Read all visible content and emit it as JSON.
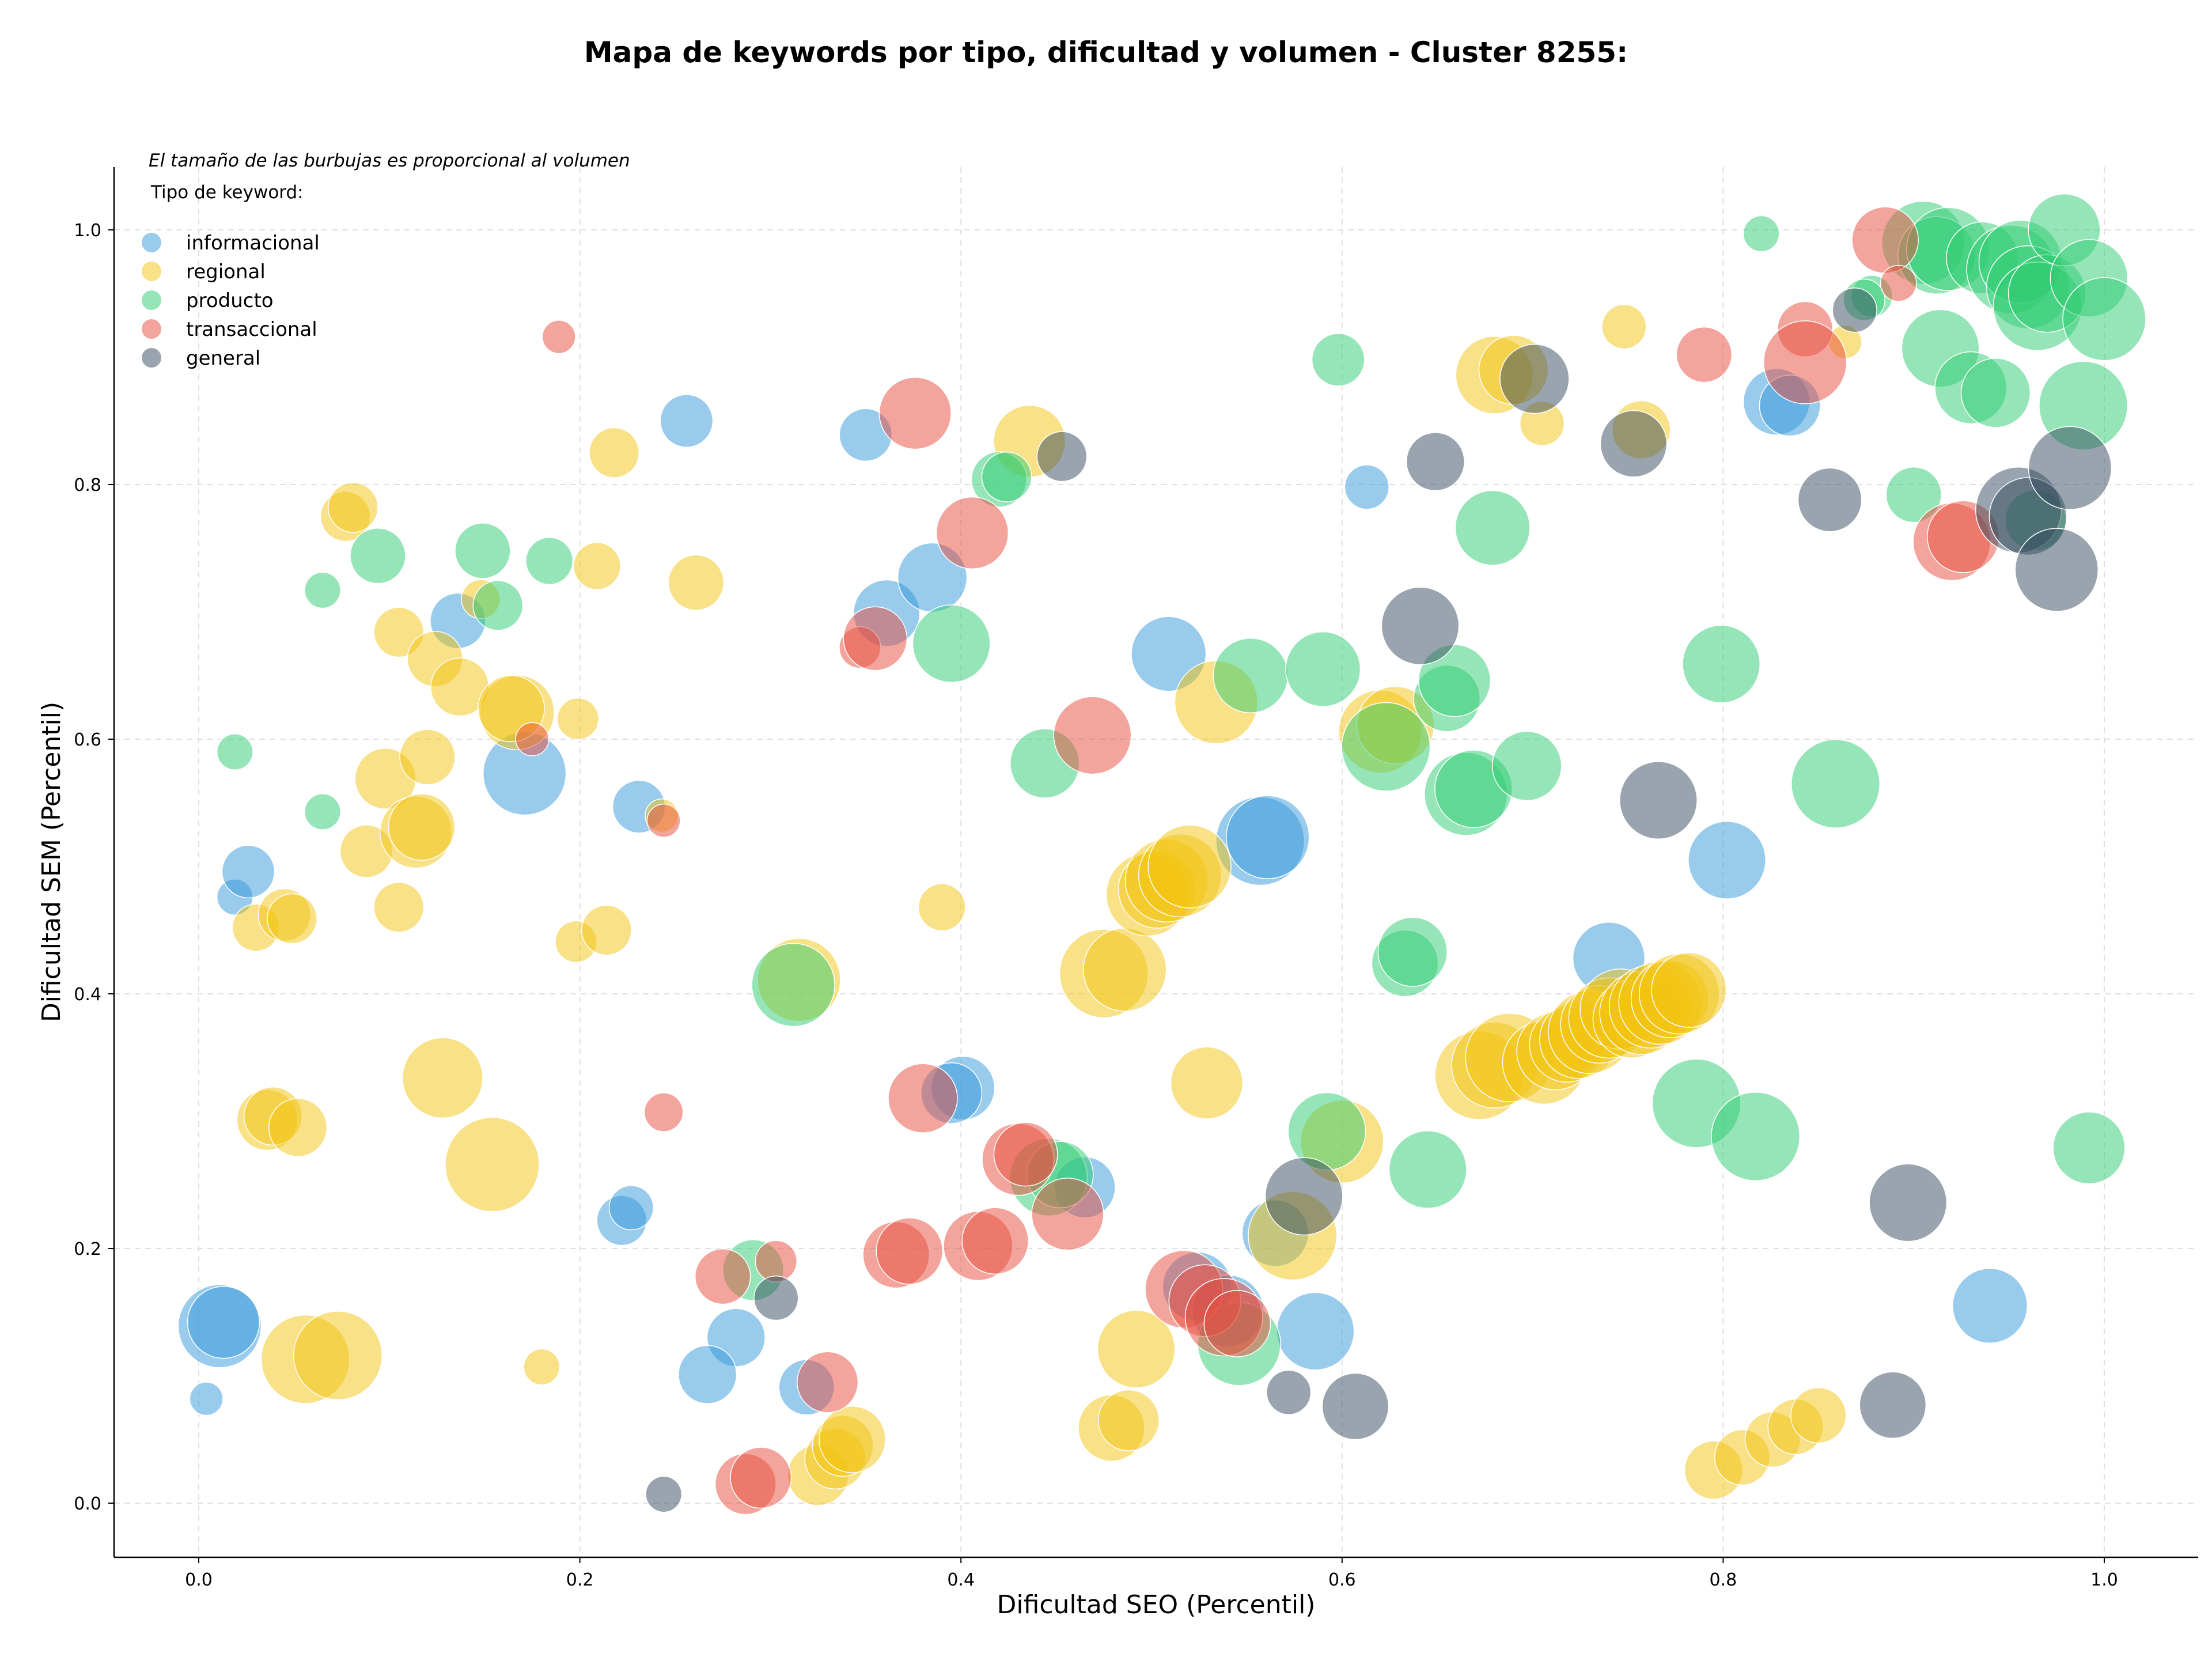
{
  "chart_data": {
    "type": "scatter",
    "title": "Mapa de keywords por tipo, dificultad y volumen - Cluster 8255:",
    "xlabel": "Dificultad SEO (Percentil)",
    "ylabel": "Dificultad SEM (Percentil)",
    "xlim": [
      -0.045,
      1.05
    ],
    "ylim": [
      -0.045,
      1.05
    ],
    "xticks": [
      0.0,
      0.2,
      0.4,
      0.6,
      0.8,
      1.0
    ],
    "yticks": [
      0.0,
      0.2,
      0.4,
      0.6,
      0.8,
      1.0
    ],
    "xtick_labels": [
      "0.0",
      "0.2",
      "0.4",
      "0.6",
      "0.8",
      "1.0"
    ],
    "ytick_labels": [
      "0.0",
      "0.2",
      "0.4",
      "0.6",
      "0.8",
      "1.0"
    ],
    "grid": true,
    "annotation": "El tamaño de las burbujas es proporcional al volumen",
    "legend_title": "Tipo de keyword:",
    "legend_position": "top-left",
    "series": [
      {
        "name": "informacional",
        "color": "#3498db",
        "points": [
          [
            0.004,
            0.082,
            12
          ],
          [
            0.019,
            0.476,
            13
          ],
          [
            0.026,
            0.496,
            19
          ],
          [
            0.011,
            0.139,
            30
          ],
          [
            0.013,
            0.142,
            26
          ],
          [
            0.136,
            0.693,
            20
          ],
          [
            0.171,
            0.573,
            30
          ],
          [
            0.231,
            0.547,
            19
          ],
          [
            0.256,
            0.85,
            19
          ],
          [
            0.222,
            0.222,
            18
          ],
          [
            0.227,
            0.232,
            16
          ],
          [
            0.282,
            0.13,
            21
          ],
          [
            0.267,
            0.101,
            21
          ],
          [
            0.319,
            0.091,
            20
          ],
          [
            0.35,
            0.839,
            19
          ],
          [
            0.361,
            0.699,
            24
          ],
          [
            0.385,
            0.727,
            25
          ],
          [
            0.401,
            0.326,
            23
          ],
          [
            0.395,
            0.322,
            22
          ],
          [
            0.509,
            0.667,
            27
          ],
          [
            0.465,
            0.248,
            22
          ],
          [
            0.524,
            0.17,
            25
          ],
          [
            0.54,
            0.151,
            26
          ],
          [
            0.557,
            0.52,
            32
          ],
          [
            0.561,
            0.523,
            30
          ],
          [
            0.565,
            0.212,
            24
          ],
          [
            0.586,
            0.135,
            28
          ],
          [
            0.613,
            0.798,
            16
          ],
          [
            0.74,
            0.428,
            26
          ],
          [
            0.802,
            0.505,
            28
          ],
          [
            0.828,
            0.865,
            24
          ],
          [
            0.835,
            0.862,
            22
          ],
          [
            0.94,
            0.155,
            27
          ]
        ]
      },
      {
        "name": "regional",
        "color": "#f1c40f",
        "points": [
          [
            0.03,
            0.452,
            17
          ],
          [
            0.045,
            0.462,
            19
          ],
          [
            0.049,
            0.459,
            18
          ],
          [
            0.036,
            0.301,
            22
          ],
          [
            0.039,
            0.304,
            21
          ],
          [
            0.052,
            0.295,
            21
          ],
          [
            0.056,
            0.113,
            32
          ],
          [
            0.073,
            0.116,
            32
          ],
          [
            0.077,
            0.775,
            18
          ],
          [
            0.081,
            0.782,
            18
          ],
          [
            0.088,
            0.512,
            19
          ],
          [
            0.105,
            0.684,
            18
          ],
          [
            0.105,
            0.468,
            18
          ],
          [
            0.098,
            0.569,
            22
          ],
          [
            0.114,
            0.527,
            26
          ],
          [
            0.117,
            0.531,
            24
          ],
          [
            0.124,
            0.663,
            20
          ],
          [
            0.12,
            0.586,
            20
          ],
          [
            0.137,
            0.641,
            21
          ],
          [
            0.128,
            0.334,
            29
          ],
          [
            0.154,
            0.266,
            34
          ],
          [
            0.148,
            0.71,
            14
          ],
          [
            0.167,
            0.621,
            27
          ],
          [
            0.164,
            0.624,
            24
          ],
          [
            0.18,
            0.107,
            13
          ],
          [
            0.199,
            0.616,
            15
          ],
          [
            0.198,
            0.441,
            15
          ],
          [
            0.209,
            0.736,
            17
          ],
          [
            0.214,
            0.45,
            18
          ],
          [
            0.218,
            0.825,
            18
          ],
          [
            0.261,
            0.723,
            20
          ],
          [
            0.243,
            0.54,
            12
          ],
          [
            0.325,
            0.022,
            22
          ],
          [
            0.334,
            0.035,
            22
          ],
          [
            0.338,
            0.045,
            22
          ],
          [
            0.343,
            0.05,
            24
          ],
          [
            0.315,
            0.411,
            30
          ],
          [
            0.39,
            0.468,
            17
          ],
          [
            0.436,
            0.834,
            26
          ],
          [
            0.475,
            0.416,
            32
          ],
          [
            0.486,
            0.419,
            30
          ],
          [
            0.479,
            0.059,
            24
          ],
          [
            0.488,
            0.065,
            22
          ],
          [
            0.492,
            0.121,
            28
          ],
          [
            0.498,
            0.478,
            30
          ],
          [
            0.503,
            0.482,
            28
          ],
          [
            0.508,
            0.489,
            30
          ],
          [
            0.515,
            0.493,
            30
          ],
          [
            0.52,
            0.5,
            30
          ],
          [
            0.529,
            0.33,
            26
          ],
          [
            0.534,
            0.629,
            30
          ],
          [
            0.574,
            0.21,
            32
          ],
          [
            0.6,
            0.284,
            30
          ],
          [
            0.62,
            0.606,
            30
          ],
          [
            0.628,
            0.611,
            28
          ],
          [
            0.672,
            0.336,
            32
          ],
          [
            0.68,
            0.344,
            31
          ],
          [
            0.688,
            0.35,
            32
          ],
          [
            0.68,
            0.886,
            28
          ],
          [
            0.69,
            0.89,
            25
          ],
          [
            0.706,
            0.346,
            30
          ],
          [
            0.712,
            0.355,
            28
          ],
          [
            0.718,
            0.36,
            27
          ],
          [
            0.724,
            0.364,
            28
          ],
          [
            0.73,
            0.37,
            30
          ],
          [
            0.735,
            0.376,
            28
          ],
          [
            0.74,
            0.381,
            29
          ],
          [
            0.746,
            0.388,
            29
          ],
          [
            0.752,
            0.38,
            28
          ],
          [
            0.757,
            0.385,
            30
          ],
          [
            0.762,
            0.39,
            30
          ],
          [
            0.767,
            0.393,
            30
          ],
          [
            0.772,
            0.396,
            28
          ],
          [
            0.777,
            0.4,
            29
          ],
          [
            0.782,
            0.403,
            27
          ],
          [
            0.748,
            0.924,
            16
          ],
          [
            0.757,
            0.843,
            21
          ],
          [
            0.705,
            0.848,
            16
          ],
          [
            0.864,
            0.912,
            12
          ],
          [
            0.795,
            0.026,
            21
          ],
          [
            0.81,
            0.036,
            20
          ],
          [
            0.826,
            0.05,
            20
          ],
          [
            0.838,
            0.06,
            20
          ],
          [
            0.85,
            0.069,
            20
          ]
        ]
      },
      {
        "name": "producto",
        "color": "#2ecc71",
        "points": [
          [
            0.019,
            0.59,
            13
          ],
          [
            0.065,
            0.717,
            13
          ],
          [
            0.065,
            0.543,
            13
          ],
          [
            0.094,
            0.744,
            20
          ],
          [
            0.149,
            0.748,
            20
          ],
          [
            0.157,
            0.705,
            18
          ],
          [
            0.184,
            0.74,
            17
          ],
          [
            0.291,
            0.183,
            22
          ],
          [
            0.312,
            0.407,
            30
          ],
          [
            0.395,
            0.675,
            28
          ],
          [
            0.42,
            0.804,
            20
          ],
          [
            0.424,
            0.806,
            18
          ],
          [
            0.444,
            0.581,
            25
          ],
          [
            0.446,
            0.256,
            28
          ],
          [
            0.452,
            0.258,
            24
          ],
          [
            0.546,
            0.125,
            30
          ],
          [
            0.552,
            0.65,
            27
          ],
          [
            0.59,
            0.655,
            27
          ],
          [
            0.598,
            0.898,
            19
          ],
          [
            0.592,
            0.292,
            28
          ],
          [
            0.623,
            0.594,
            32
          ],
          [
            0.633,
            0.424,
            24
          ],
          [
            0.637,
            0.433,
            25
          ],
          [
            0.645,
            0.262,
            28
          ],
          [
            0.655,
            0.632,
            24
          ],
          [
            0.659,
            0.646,
            26
          ],
          [
            0.665,
            0.557,
            30
          ],
          [
            0.669,
            0.561,
            28
          ],
          [
            0.679,
            0.766,
            27
          ],
          [
            0.697,
            0.579,
            25
          ],
          [
            0.786,
            0.314,
            32
          ],
          [
            0.799,
            0.659,
            28
          ],
          [
            0.817,
            0.288,
            32
          ],
          [
            0.82,
            0.997,
            13
          ],
          [
            0.859,
            0.565,
            32
          ],
          [
            0.878,
            0.948,
            15
          ],
          [
            0.874,
            0.945,
            15
          ],
          [
            0.9,
            0.792,
            20
          ],
          [
            0.905,
            0.99,
            30
          ],
          [
            0.912,
            0.98,
            28
          ],
          [
            0.918,
            0.985,
            30
          ],
          [
            0.914,
            0.907,
            28
          ],
          [
            0.93,
            0.876,
            26
          ],
          [
            0.936,
            0.978,
            26
          ],
          [
            0.943,
            0.872,
            25
          ],
          [
            0.951,
            0.969,
            32
          ],
          [
            0.956,
            0.975,
            30
          ],
          [
            0.96,
            0.955,
            30
          ],
          [
            0.965,
            0.94,
            32
          ],
          [
            0.97,
            0.95,
            28
          ],
          [
            0.964,
            0.772,
            22
          ],
          [
            0.979,
            1.0,
            26
          ],
          [
            0.992,
            0.962,
            28
          ],
          [
            1.0,
            0.93,
            30
          ],
          [
            0.989,
            0.862,
            32
          ],
          [
            0.992,
            0.279,
            26
          ]
        ]
      },
      {
        "name": "transaccional",
        "color": "#e74c3c",
        "points": [
          [
            0.189,
            0.916,
            12
          ],
          [
            0.175,
            0.6,
            12
          ],
          [
            0.244,
            0.307,
            14
          ],
          [
            0.244,
            0.536,
            12
          ],
          [
            0.275,
            0.178,
            20
          ],
          [
            0.287,
            0.015,
            22
          ],
          [
            0.295,
            0.02,
            22
          ],
          [
            0.303,
            0.19,
            15
          ],
          [
            0.33,
            0.095,
            22
          ],
          [
            0.347,
            0.672,
            15
          ],
          [
            0.355,
            0.679,
            23
          ],
          [
            0.376,
            0.856,
            26
          ],
          [
            0.38,
            0.318,
            25
          ],
          [
            0.366,
            0.195,
            24
          ],
          [
            0.373,
            0.198,
            24
          ],
          [
            0.406,
            0.762,
            26
          ],
          [
            0.409,
            0.202,
            25
          ],
          [
            0.418,
            0.206,
            24
          ],
          [
            0.43,
            0.27,
            26
          ],
          [
            0.434,
            0.274,
            23
          ],
          [
            0.456,
            0.227,
            26
          ],
          [
            0.469,
            0.603,
            28
          ],
          [
            0.517,
            0.168,
            28
          ],
          [
            0.528,
            0.159,
            26
          ],
          [
            0.538,
            0.146,
            28
          ],
          [
            0.545,
            0.141,
            24
          ],
          [
            0.79,
            0.902,
            20
          ],
          [
            0.843,
            0.922,
            20
          ],
          [
            0.843,
            0.896,
            30
          ],
          [
            0.885,
            0.992,
            24
          ],
          [
            0.892,
            0.958,
            13
          ],
          [
            0.92,
            0.755,
            28
          ],
          [
            0.926,
            0.759,
            26
          ]
        ]
      },
      {
        "name": "general",
        "color": "#34495e",
        "points": [
          [
            0.244,
            0.007,
            13
          ],
          [
            0.303,
            0.161,
            16
          ],
          [
            0.453,
            0.822,
            18
          ],
          [
            0.572,
            0.087,
            16
          ],
          [
            0.58,
            0.241,
            28
          ],
          [
            0.607,
            0.076,
            24
          ],
          [
            0.641,
            0.689,
            28
          ],
          [
            0.649,
            0.818,
            21
          ],
          [
            0.701,
            0.883,
            25
          ],
          [
            0.753,
            0.832,
            24
          ],
          [
            0.766,
            0.552,
            28
          ],
          [
            0.856,
            0.788,
            23
          ],
          [
            0.869,
            0.937,
            16
          ],
          [
            0.889,
            0.077,
            24
          ],
          [
            0.897,
            0.236,
            28
          ],
          [
            0.955,
            0.78,
            31
          ],
          [
            0.96,
            0.775,
            28
          ],
          [
            0.975,
            0.733,
            30
          ],
          [
            0.982,
            0.813,
            30
          ]
        ]
      }
    ]
  }
}
